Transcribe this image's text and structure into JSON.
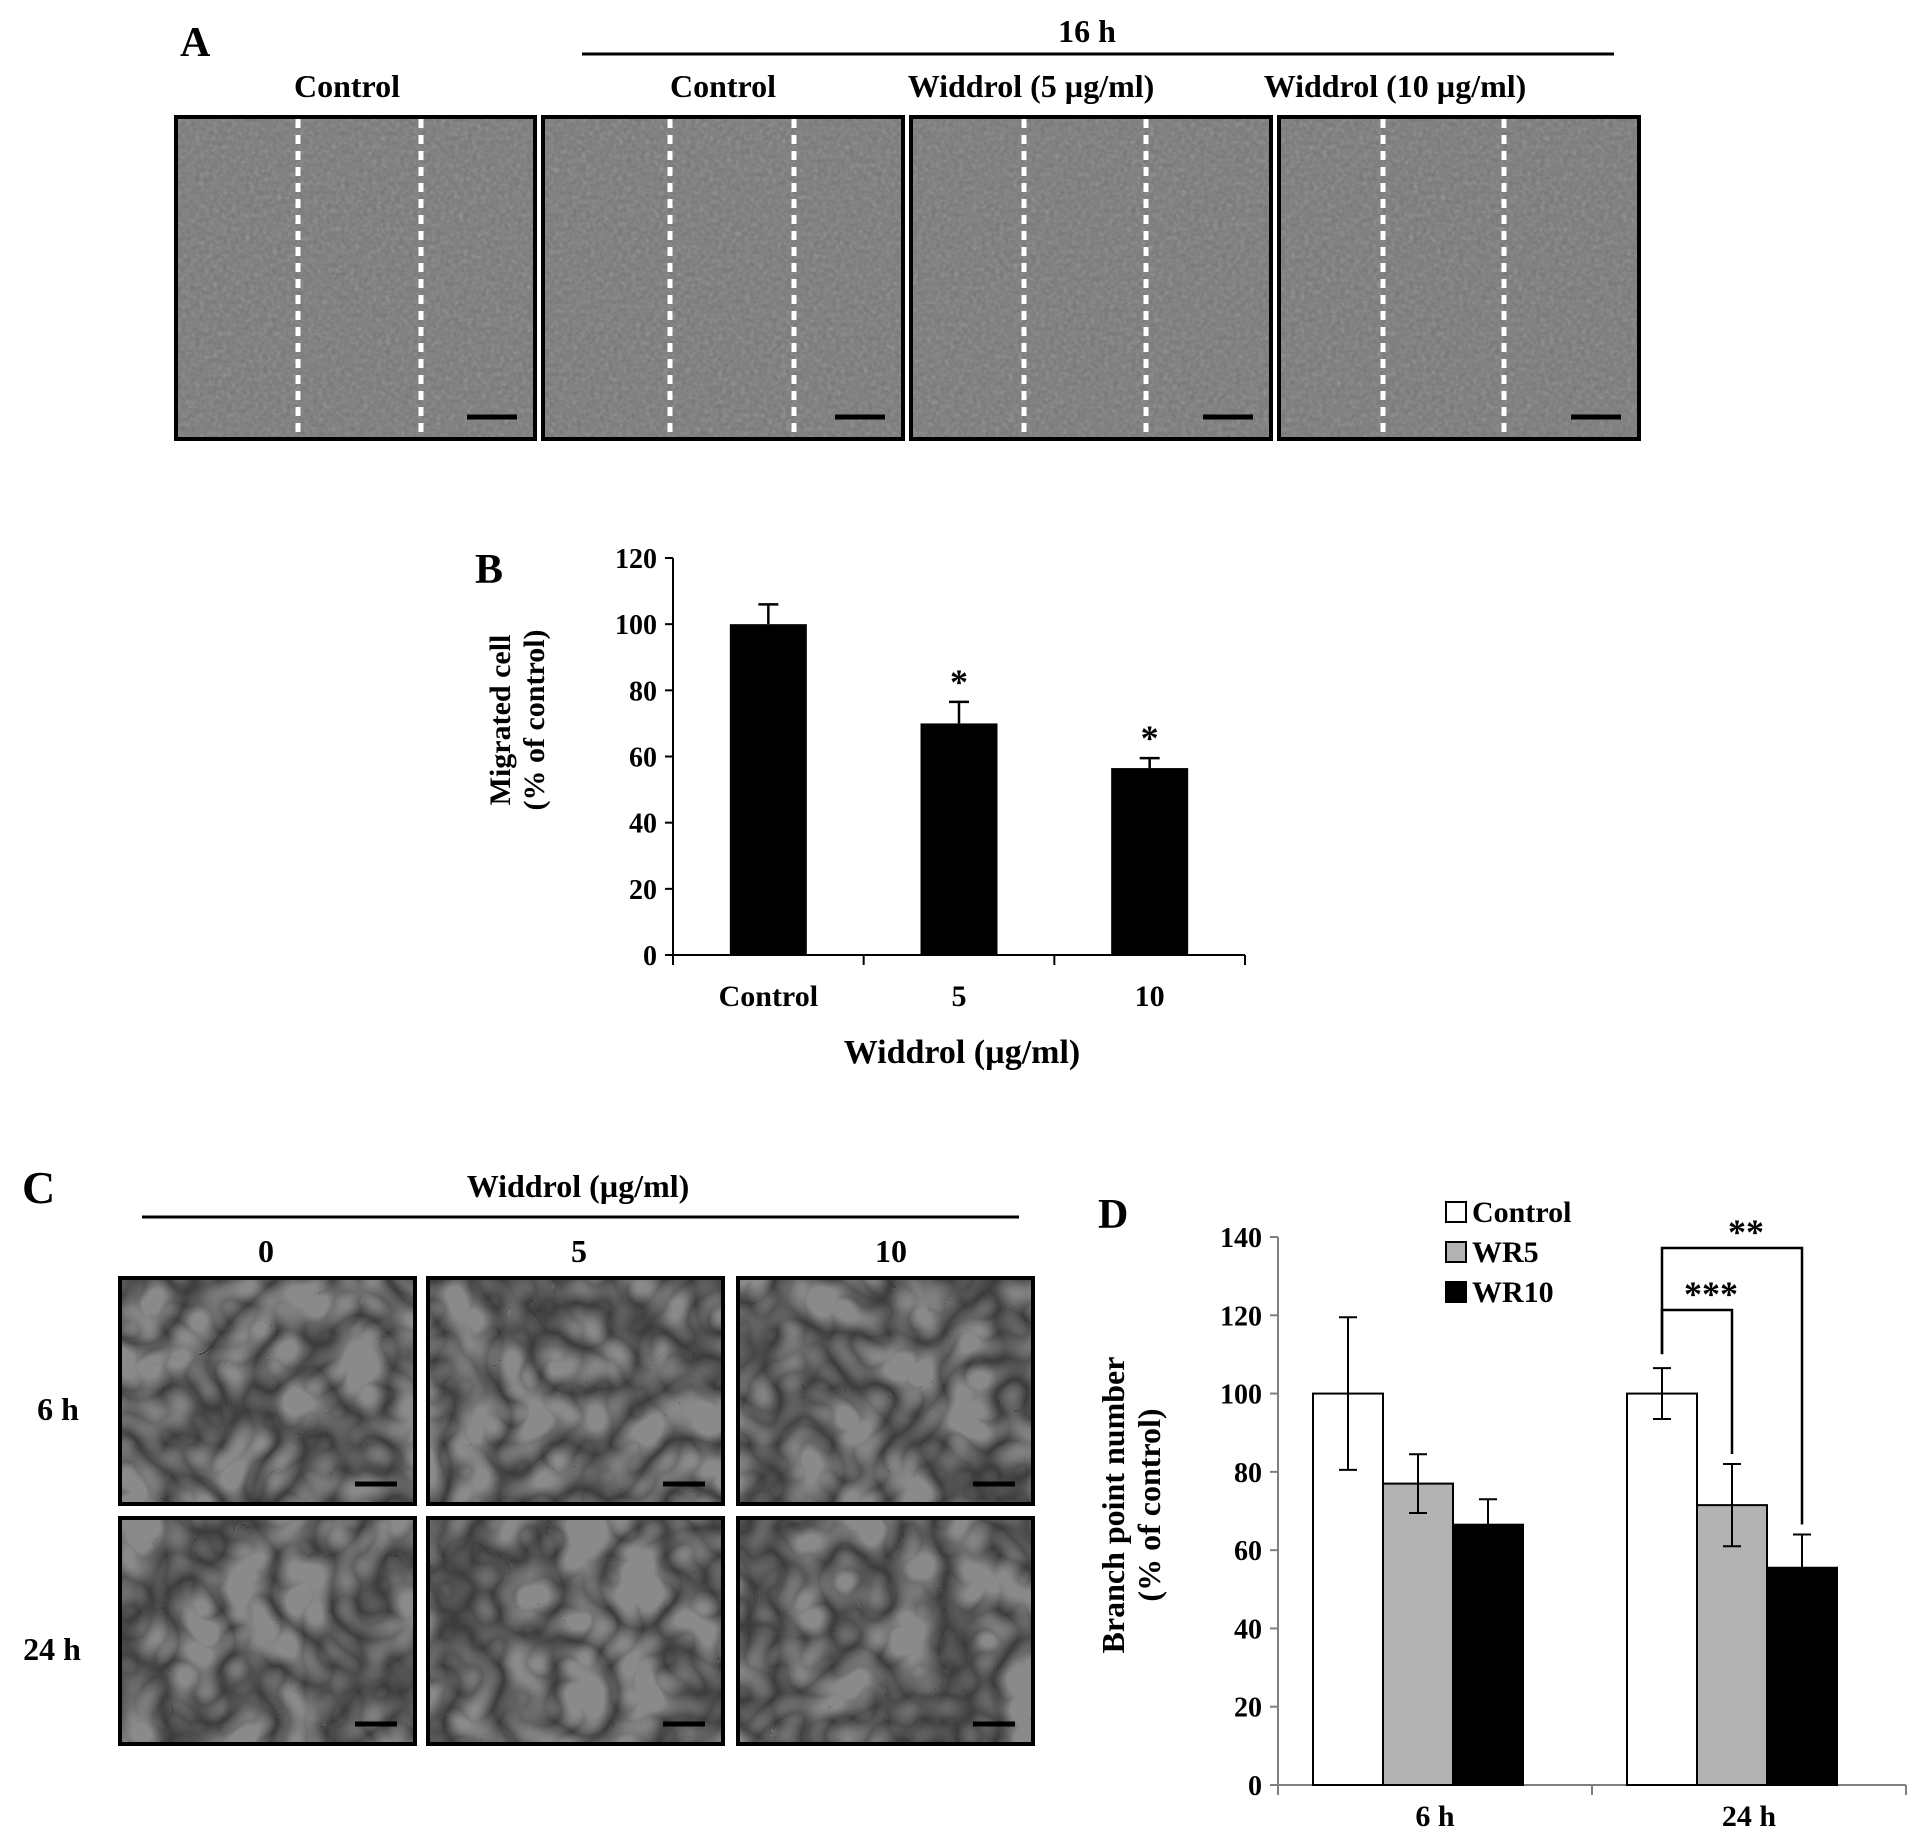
{
  "panel_a": {
    "letter": "A",
    "group_label": "16 h",
    "image_labels": [
      "Control",
      "Control",
      "Widdrol (5 µg/ml)",
      "Widdrol (10 µg/ml)"
    ]
  },
  "panel_c": {
    "letter": "C",
    "group_label": "Widdrol (µg/ml)",
    "col_labels": [
      "0",
      "5",
      "10"
    ],
    "row_labels": [
      "6 h",
      "24 h"
    ]
  },
  "colors": {
    "micrograph_a": "#767676",
    "micrograph_c": "#8a8a8a",
    "dash": "#ffffff",
    "bar_black": "#000000",
    "bar_gray": "#b3b3b3",
    "bar_white": "#ffffff"
  },
  "chart_data": [
    {
      "panel": "B",
      "type": "bar",
      "categories": [
        "Control",
        "5",
        "10"
      ],
      "values": [
        100,
        70,
        56.5
      ],
      "errors": [
        6,
        6.5,
        3
      ],
      "significance": [
        "",
        "*",
        "*"
      ],
      "xlabel": "Widdrol (µg/ml)",
      "ylabel_lines": [
        "Migrated cell",
        "(% of control)"
      ],
      "ylim": [
        0,
        120
      ],
      "yticks": [
        0,
        20,
        40,
        60,
        80,
        100,
        120
      ],
      "grid": false
    },
    {
      "panel": "D",
      "type": "bar",
      "categories": [
        "6 h",
        "24 h"
      ],
      "series": [
        {
          "name": "Control",
          "values": [
            100,
            100
          ],
          "errors": [
            19.5,
            6.5
          ]
        },
        {
          "name": "WR5",
          "values": [
            77,
            71.5
          ],
          "errors": [
            7.5,
            10.5
          ]
        },
        {
          "name": "WR10",
          "values": [
            66.5,
            55.5
          ],
          "errors": [
            6.5,
            8.5
          ]
        }
      ],
      "ylabel_lines": [
        "Branch point number",
        "(% of control)"
      ],
      "ylim": [
        0,
        140
      ],
      "yticks": [
        0,
        20,
        40,
        60,
        80,
        100,
        120,
        140
      ],
      "legend_position": "top",
      "grid": false,
      "annotations": [
        {
          "text": "**",
          "category": "24 h",
          "from": "Control",
          "to": "WR10"
        },
        {
          "text": "***",
          "category": "24 h",
          "from": "Control",
          "to": "WR5"
        }
      ]
    }
  ]
}
